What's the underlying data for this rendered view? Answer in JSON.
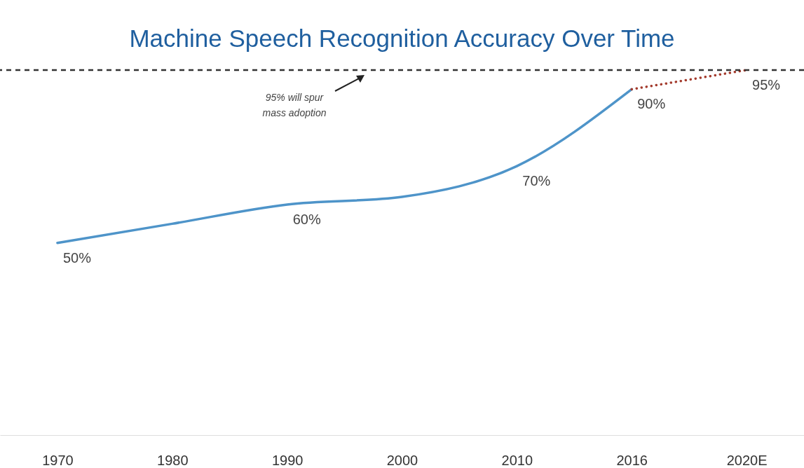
{
  "chart_data": {
    "type": "line",
    "title": "Machine Speech Recognition Accuracy Over Time",
    "categories": [
      "1970",
      "1980",
      "1990",
      "2000",
      "2010",
      "2016",
      "2020E"
    ],
    "series": [
      {
        "color": "#4e94c9",
        "line_style": "solid",
        "values": [
          50,
          55,
          60,
          62,
          70,
          90,
          null
        ],
        "value_labels": [
          "50%",
          null,
          "60%",
          null,
          "70%",
          "90%",
          null
        ]
      },
      {
        "color": "#a33a2c",
        "line_style": "dotted",
        "values": [
          null,
          null,
          null,
          null,
          null,
          90,
          95
        ],
        "value_labels": [
          null,
          null,
          null,
          null,
          null,
          null,
          "95%"
        ]
      }
    ],
    "ref_lines": [
      {
        "axis": "y",
        "value": 95,
        "color": "#333333",
        "line_style": "dashed"
      }
    ],
    "annotations": [
      "95% will spur\nmass adoption"
    ]
  }
}
